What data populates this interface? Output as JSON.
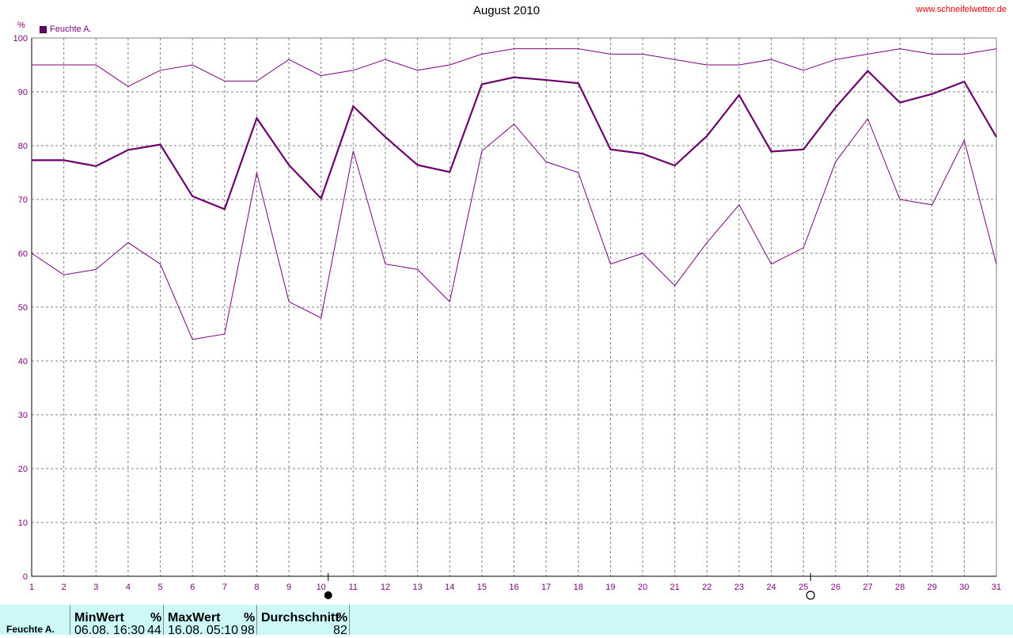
{
  "header": {
    "title": "August 2010",
    "site": "www.schneifelwetter.de",
    "unit": "%",
    "legend_label": "Feuchte A."
  },
  "colors": {
    "series": "#7a007a",
    "series_mean": "#6b006b",
    "grid": "#808080",
    "stats_bg": "#ccf8f8",
    "site_text": "#e00000"
  },
  "chart_data": {
    "type": "line",
    "title": "August 2010",
    "ylabel": "%",
    "xlim": [
      1,
      31
    ],
    "ylim": [
      0,
      100
    ],
    "y_ticks": [
      0,
      10,
      20,
      30,
      40,
      50,
      60,
      70,
      80,
      90,
      100
    ],
    "x": [
      1,
      2,
      3,
      4,
      5,
      6,
      7,
      8,
      9,
      10,
      11,
      12,
      13,
      14,
      15,
      16,
      17,
      18,
      19,
      20,
      21,
      22,
      23,
      24,
      25,
      26,
      27,
      28,
      29,
      30,
      31
    ],
    "grid": true,
    "legend": "top-left",
    "series": [
      {
        "name": "Feuchte A.",
        "role": "max",
        "values": [
          95,
          95,
          95,
          91,
          94,
          95,
          92,
          92,
          96,
          93,
          94,
          96,
          94,
          95,
          97,
          98,
          98,
          98,
          97,
          97,
          96,
          95,
          95,
          96,
          94,
          96,
          97,
          98,
          97,
          97,
          98
        ]
      },
      {
        "role": "mean",
        "values": [
          77.3,
          77.3,
          76.2,
          79.2,
          80.2,
          70.6,
          68.2,
          85.1,
          76.4,
          70.2,
          87.3,
          81.6,
          76.4,
          75.1,
          91.4,
          92.7,
          92.2,
          91.6,
          79.3,
          78.5,
          76.3,
          81.8,
          89.4,
          78.9,
          79.3,
          87.1,
          93.9,
          88.0,
          89.6,
          91.9,
          81.6
        ]
      },
      {
        "role": "min",
        "values": [
          60,
          56,
          57,
          62,
          58,
          44,
          45,
          75,
          51,
          48,
          79,
          58,
          57,
          51,
          79,
          84,
          77,
          75,
          58,
          60,
          54,
          62,
          69,
          58,
          61,
          77,
          85,
          70,
          69,
          81,
          58
        ]
      }
    ],
    "moon_phases": [
      {
        "day": 10,
        "phase": "new-moon"
      },
      {
        "day": 25,
        "phase": "full-moon"
      }
    ]
  },
  "stats": {
    "row_label": "Feuchte A.",
    "min": {
      "header": "MinWert",
      "unit": "%",
      "when": "06.08.  16:30",
      "value": "44"
    },
    "max": {
      "header": "MaxWert",
      "unit": "%",
      "when": "16.08.  05:10",
      "value": "98"
    },
    "avg": {
      "header": "Durchschnitt",
      "unit": "%",
      "value": "82"
    }
  }
}
